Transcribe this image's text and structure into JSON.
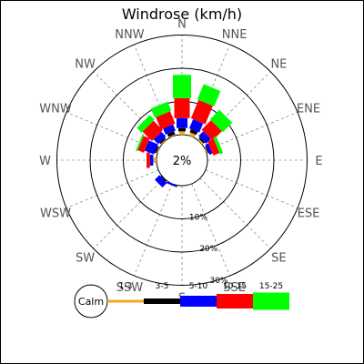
{
  "chart_data": {
    "type": "windrose",
    "title": "Windrose (km/h)",
    "center_label": "2%",
    "calm_label": "Calm",
    "directions": [
      "N",
      "NNE",
      "NE",
      "ENE",
      "E",
      "ESE",
      "SE",
      "SSE",
      "S",
      "SSW",
      "SW",
      "WSW",
      "W",
      "WNW",
      "NW",
      "NNW"
    ],
    "ring_labels": [
      "10%",
      "20%",
      "30%"
    ],
    "rings": [
      10,
      20,
      30
    ],
    "speed_bins": [
      {
        "label": "1-3",
        "color": "#f5a623"
      },
      {
        "label": "3-5",
        "color": "#000000"
      },
      {
        "label": "5-10",
        "color": "#0000ff"
      },
      {
        "label": "10-15",
        "color": "#ff0000"
      },
      {
        "label": "15-25",
        "color": "#00ff00"
      }
    ],
    "frequencies": {
      "N": [
        1,
        1,
        3,
        6,
        7
      ],
      "NNE": [
        1,
        1,
        3,
        6,
        5
      ],
      "NE": [
        0.5,
        0.5,
        2,
        4,
        4
      ],
      "ENE": [
        0.3,
        0.3,
        1,
        2,
        1
      ],
      "E": [
        0,
        0,
        0,
        0,
        0
      ],
      "ESE": [
        0,
        0,
        0,
        0,
        0
      ],
      "SE": [
        0,
        0,
        0,
        0,
        0
      ],
      "SSE": [
        0,
        0,
        0,
        0,
        0
      ],
      "S": [
        0,
        0,
        0,
        0,
        0
      ],
      "SSW": [
        0,
        0,
        0.5,
        0,
        0
      ],
      "SW": [
        0,
        0.3,
        2,
        0,
        0
      ],
      "WSW": [
        0,
        0,
        0,
        0,
        0
      ],
      "W": [
        1,
        0,
        1,
        1,
        0
      ],
      "WNW": [
        0.3,
        0.5,
        3,
        2,
        0.5
      ],
      "NW": [
        0.3,
        0.5,
        2,
        4,
        2
      ],
      "NNW": [
        0.3,
        1,
        2,
        4,
        3
      ]
    }
  }
}
